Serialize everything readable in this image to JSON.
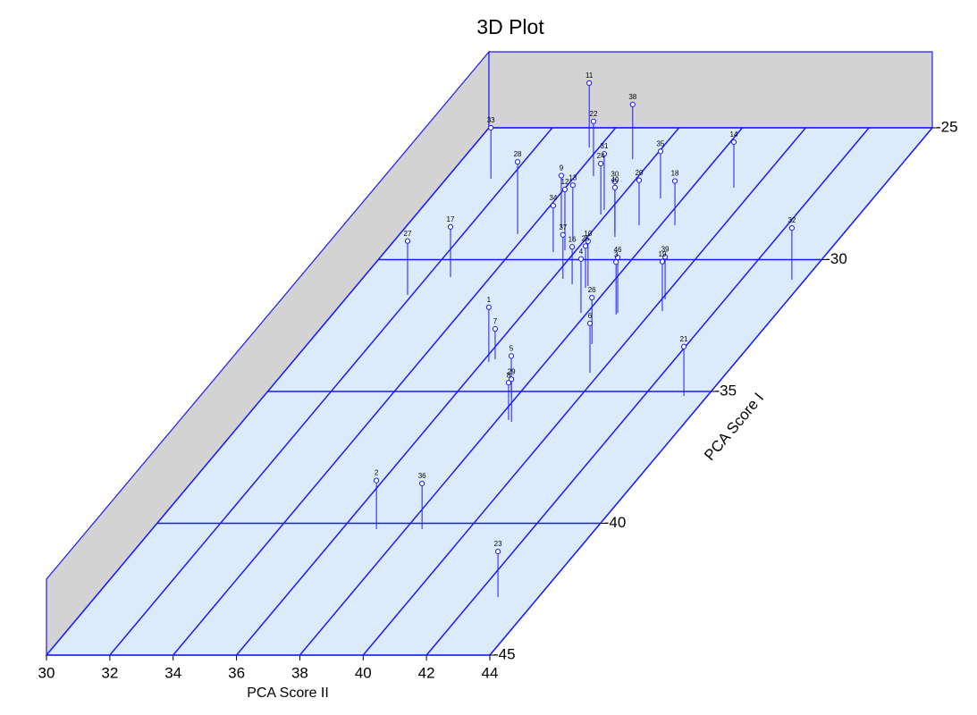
{
  "chart_data": {
    "type": "scatter3d",
    "title": "3D Plot",
    "xlabel": "PCA Score II",
    "ylabel": "PCA Score I",
    "xlim": [
      30,
      44
    ],
    "xticks": [
      30,
      32,
      34,
      36,
      38,
      40,
      42,
      44
    ],
    "ylim": [
      -45,
      -25
    ],
    "yticks": [
      -45,
      -40,
      -35,
      -30,
      -25
    ],
    "zlim": [
      0,
      1
    ],
    "grid": true,
    "floor_color": "#dcebfb",
    "wall_color": "#d3d3d3",
    "line_color": "#1a1aff",
    "point_labels": [
      "11",
      "38",
      "22",
      "33",
      "31",
      "24",
      "35",
      "14",
      "28",
      "9",
      "30",
      "20",
      "18",
      "13",
      "12",
      "40",
      "34",
      "17",
      "27",
      "37",
      "10",
      "16",
      "25",
      "4",
      "46",
      "3",
      "39",
      "19",
      "32",
      "26",
      "1",
      "7",
      "6",
      "21",
      "5",
      "29",
      "8",
      "2",
      "36",
      "23"
    ],
    "x": [
      33.69,
      35.37,
      34.58,
      31.41,
      35.82,
      35.83,
      37.29,
      39.32,
      33.72,
      34.94,
      36.75,
      37.32,
      38.45,
      35.66,
      35.64,
      36.87,
      35.32,
      32.74,
      31.86,
      36.34,
      37.32,
      36.77,
      37.29,
      37.81,
      38.97,
      38.96,
      40.11,
      40.33,
      43.59,
      38.98,
      36.2,
      36.33,
      39.68,
      43.26,
      37.86,
      38.5,
      38.36,
      37.08,
      38.52,
      42.72
    ],
    "y": [
      -25.75,
      -26.19,
      -26.83,
      -26.93,
      -28.12,
      -28.29,
      -27.68,
      -27.27,
      -29.03,
      -28.8,
      -28.97,
      -28.69,
      -28.69,
      -29.31,
      -29.64,
      -29.14,
      -29.71,
      -30.66,
      -31.34,
      -30.73,
      -31,
      -30.93,
      -31.07,
      -32.02,
      -32.02,
      -32.08,
      -31.51,
      -31.95,
      -30.76,
      -33.2,
      -33.88,
      -33.78,
      -34.29,
      -35.17,
      -35.24,
      -36.15,
      -36.08,
      -40.22,
      -40.22,
      -42.8
    ],
    "z": [
      0.85,
      0.72,
      0.72,
      0.67,
      0.74,
      0.67,
      0.62,
      0.6,
      0.95,
      0.69,
      0.67,
      0.59,
      0.58,
      0.74,
      0.8,
      0.65,
      0.61,
      0.66,
      0.71,
      0.58,
      0.59,
      0.49,
      0.55,
      0.71,
      0.73,
      0.69,
      0.56,
      0.65,
      0.68,
      0.61,
      0.72,
      0.4,
      0.65,
      0.65,
      0.55,
      0.56,
      0.49,
      0.64,
      0.6,
      0.6
    ]
  }
}
